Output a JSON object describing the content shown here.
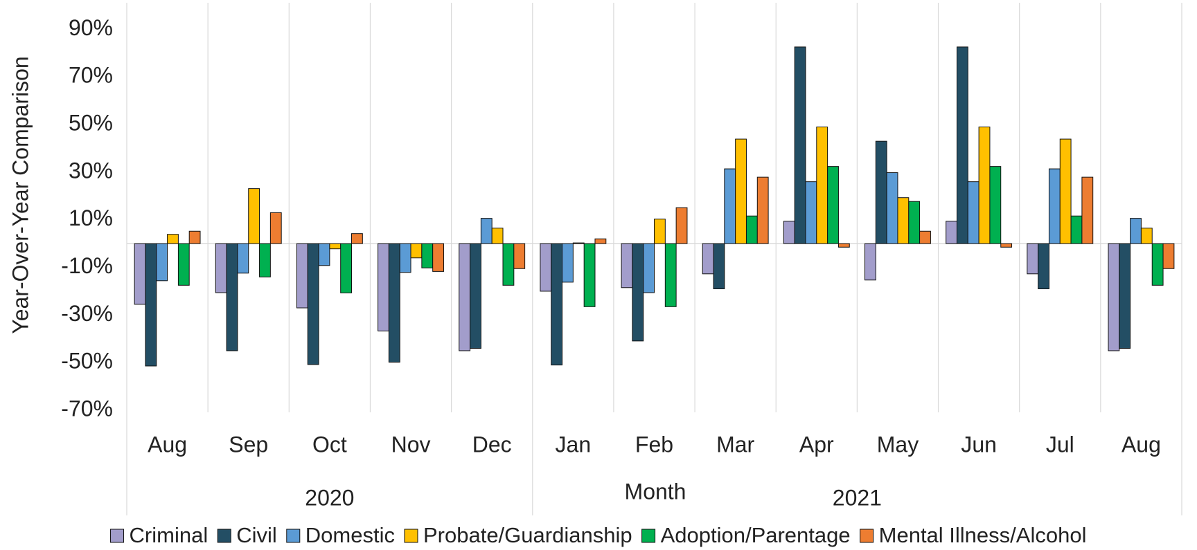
{
  "chart_data": {
    "type": "bar",
    "y_label": "Year-Over-Year Comparison",
    "x_label": "Month",
    "groups": [
      {
        "name": "2020",
        "categories": [
          "Aug",
          "Sep",
          "Oct",
          "Nov",
          "Dec"
        ]
      },
      {
        "name": "2021",
        "categories": [
          "Jan",
          "Feb",
          "Mar",
          "Apr",
          "May",
          "Jun",
          "Jul",
          "Aug"
        ]
      }
    ],
    "series": [
      {
        "name": "Criminal",
        "color": "#a29dcb",
        "values": [
          -25.5,
          -20.6,
          -27,
          -36.7,
          -45,
          -20,
          -18.5,
          -12.7,
          9.4,
          -15.3,
          9.4,
          -12.7,
          -45
        ]
      },
      {
        "name": "Civil",
        "color": "#234e64",
        "values": [
          -51.4,
          -45,
          -50.8,
          -49.8,
          -44,
          -51,
          -40.9,
          -19,
          82.6,
          43,
          82.6,
          -19,
          -44
        ]
      },
      {
        "name": "Domestic",
        "color": "#5b9bd5",
        "values": [
          -15.6,
          -12.4,
          -9.2,
          -12.1,
          10.6,
          -16.2,
          -20.6,
          31.4,
          26,
          29.8,
          26,
          31.4,
          10.6
        ]
      },
      {
        "name": "Probate/Guardianship",
        "color": "#ffc000",
        "values": [
          3.9,
          23.1,
          -2.2,
          -6,
          6.5,
          0.3,
          10.3,
          43.9,
          49,
          19.3,
          49,
          43.9,
          6.5
        ]
      },
      {
        "name": "Adoption/Parentage",
        "color": "#00b050",
        "values": [
          -17.5,
          -14,
          -20.7,
          -10.2,
          -17.5,
          -26.5,
          -26.5,
          11.6,
          32.4,
          17.7,
          32.4,
          11.6,
          -17.5
        ]
      },
      {
        "name": "Mental Illness/Alcohol",
        "color": "#ed7d31",
        "values": [
          5.2,
          13,
          4.2,
          -11.7,
          -10.5,
          2,
          15.1,
          27.9,
          -1.5,
          5.2,
          -1.5,
          27.9,
          -10.5
        ]
      }
    ],
    "ylim": [
      -70,
      100
    ],
    "yticks": [
      {
        "value": -70,
        "label": "-70%"
      },
      {
        "value": -50,
        "label": "-50%"
      },
      {
        "value": -30,
        "label": "-30%"
      },
      {
        "value": -10,
        "label": "-10%"
      },
      {
        "value": 10,
        "label": "10%"
      },
      {
        "value": 30,
        "label": "30%"
      },
      {
        "value": 50,
        "label": "50%"
      },
      {
        "value": 70,
        "label": "70%"
      },
      {
        "value": 90,
        "label": "90%"
      }
    ],
    "legend": "bottom"
  }
}
